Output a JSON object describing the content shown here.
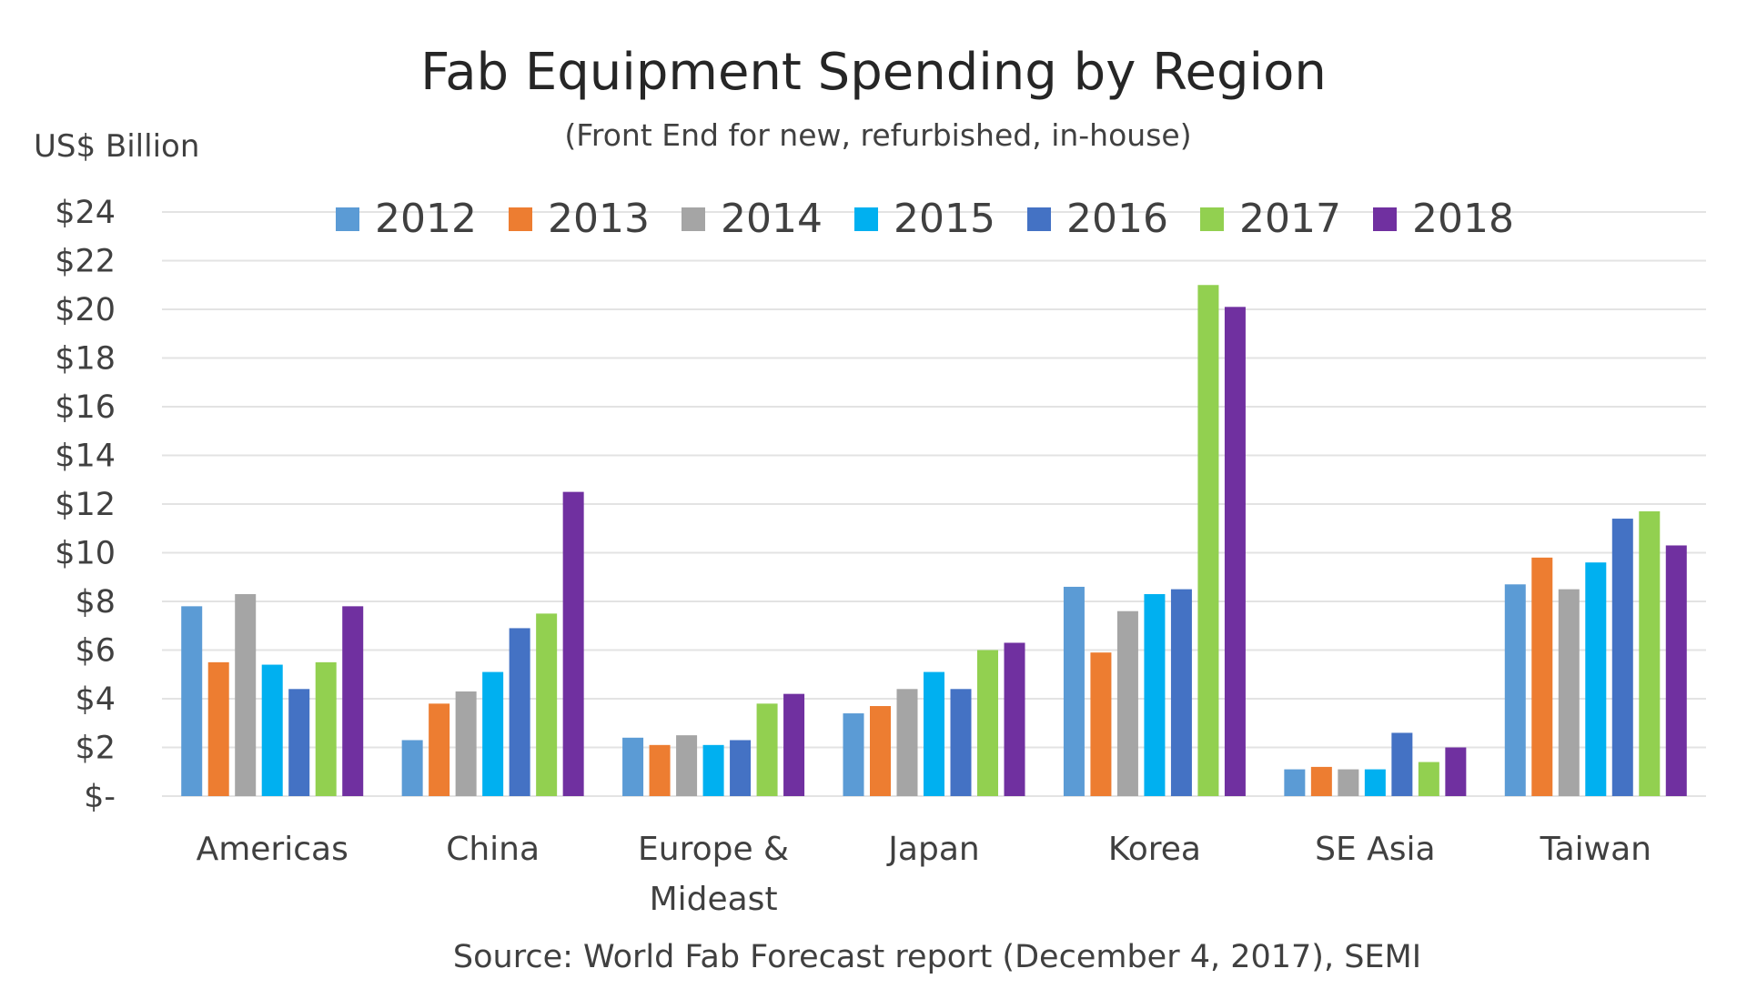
{
  "chart_data": {
    "type": "bar",
    "title": "Fab Equipment Spending by Region",
    "subtitle": "(Front End for new, refurbished, in-house)",
    "ylabel": "US$ Billion",
    "source": "Source: World Fab Forecast report (December 4, 2017), SEMI",
    "ylim": [
      0,
      24
    ],
    "yticks": [
      0,
      2,
      4,
      6,
      8,
      10,
      12,
      14,
      16,
      18,
      20,
      22,
      24
    ],
    "ytick_labels": [
      "$-",
      "$2",
      "$4",
      "$6",
      "$8",
      "$10",
      "$12",
      "$14",
      "$16",
      "$18",
      "$20",
      "$22",
      "$24"
    ],
    "grid": true,
    "legend_position": "top",
    "categories": [
      "Americas",
      "China",
      "Europe & Mideast",
      "Japan",
      "Korea",
      "SE Asia",
      "Taiwan"
    ],
    "category_label_lines": [
      [
        "Americas"
      ],
      [
        "China"
      ],
      [
        "Europe &",
        "Mideast"
      ],
      [
        "Japan"
      ],
      [
        "Korea"
      ],
      [
        "SE Asia"
      ],
      [
        "Taiwan"
      ]
    ],
    "series": [
      {
        "name": "2012",
        "color": "#5B9BD5",
        "values": [
          7.8,
          2.3,
          2.4,
          3.4,
          8.6,
          1.1,
          8.7
        ]
      },
      {
        "name": "2013",
        "color": "#ED7D31",
        "values": [
          5.5,
          3.8,
          2.1,
          3.7,
          5.9,
          1.2,
          9.8
        ]
      },
      {
        "name": "2014",
        "color": "#A5A5A5",
        "values": [
          8.3,
          4.3,
          2.5,
          4.4,
          7.6,
          1.1,
          8.5
        ]
      },
      {
        "name": "2015",
        "color": "#00B0F0",
        "values": [
          5.4,
          5.1,
          2.1,
          5.1,
          8.3,
          1.1,
          9.6
        ]
      },
      {
        "name": "2016",
        "color": "#4472C4",
        "values": [
          4.4,
          6.9,
          2.3,
          4.4,
          8.5,
          2.6,
          11.4
        ]
      },
      {
        "name": "2017",
        "color": "#92D050",
        "values": [
          5.5,
          7.5,
          3.8,
          6.0,
          21.0,
          1.4,
          11.7
        ]
      },
      {
        "name": "2018",
        "color": "#7030A0",
        "values": [
          7.8,
          12.5,
          4.2,
          6.3,
          20.1,
          2.0,
          10.3
        ]
      }
    ]
  }
}
